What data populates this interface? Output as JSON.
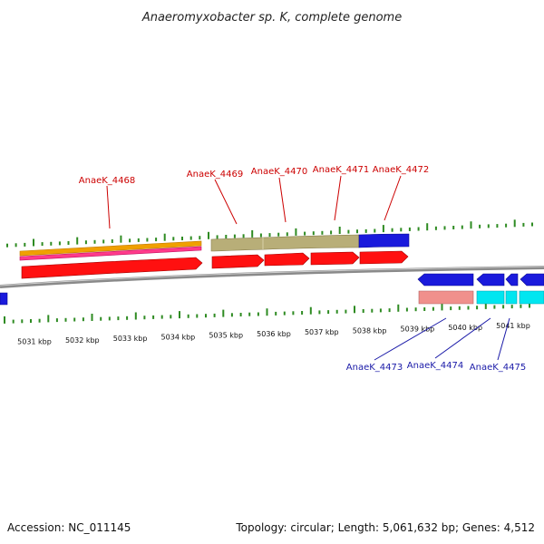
{
  "page": {
    "title": "Anaeromyxobacter sp. K, complete genome",
    "accession": "Accession: NC_011145",
    "summary": "Topology: circular; Length: 5,061,632 bp; Genes: 4,512"
  },
  "colors": {
    "background": "#ffffff",
    "tick": "#2e8b22",
    "backbone": "#8a8a8a",
    "gene_forward_label": "#cc0000",
    "gene_reverse_label": "#1a1aa8",
    "feature_orange": "#f0a000",
    "feature_pink": "#ff3a8a",
    "feature_red": "#ff1010",
    "feature_olive": "#b8ae78",
    "feature_blue": "#1a1adc",
    "feature_salmon": "#f0908c",
    "feature_cyan": "#00e6f0"
  },
  "kbp_scale": {
    "labels": [
      "5031 kbp",
      "5032 kbp",
      "5033 kbp",
      "5034 kbp",
      "5035 kbp",
      "5036 kbp",
      "5037 kbp",
      "5038 kbp",
      "5039 kbp",
      "5040 kbp",
      "5041 kbp"
    ]
  },
  "genes_forward": [
    {
      "name": "AnaeK_4468"
    },
    {
      "name": "AnaeK_4469"
    },
    {
      "name": "AnaeK_4470"
    },
    {
      "name": "AnaeK_4471"
    },
    {
      "name": "AnaeK_4472"
    }
  ],
  "genes_reverse": [
    {
      "name": "AnaeK_4473"
    },
    {
      "name": "AnaeK_4474"
    },
    {
      "name": "AnaeK_4475"
    }
  ],
  "legend_icons": {
    "forward_arrow": "arrow-right-icon",
    "reverse_arrow": "arrow-left-icon"
  }
}
